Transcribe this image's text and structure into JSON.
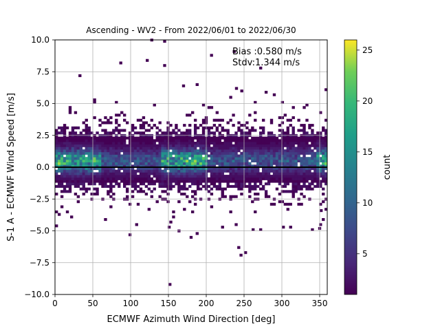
{
  "chart_data": {
    "type": "heatmap",
    "title": "Ascending - WV2 - From 2022/06/01 to 2022/06/30",
    "xlabel": "ECMWF Azimuth Wind Direction [deg]",
    "ylabel": "S-1 A - ECMWF Wind Speed [m/s]",
    "xlim": [
      0,
      360
    ],
    "ylim": [
      -10,
      10
    ],
    "xticks": [
      0,
      50,
      100,
      150,
      200,
      250,
      300,
      350
    ],
    "yticks": [
      -10.0,
      -7.5,
      -5.0,
      -2.5,
      0.0,
      2.5,
      5.0,
      7.5,
      10.0
    ],
    "ytick_labels": [
      "−10.0",
      "−7.5",
      "−5.0",
      "−2.5",
      "0.0",
      "2.5",
      "5.0",
      "7.5",
      "10.0"
    ],
    "grid": true,
    "colormap": "viridis",
    "colorbar": {
      "label": "count",
      "range": [
        1,
        26
      ],
      "ticks": [
        5,
        10,
        15,
        20,
        25
      ]
    },
    "annotations": [
      "Bias :0.580 m/s",
      "Stdv:1.344 m/s"
    ],
    "reference_line": {
      "y": 0,
      "color": "#000000"
    },
    "bin_width_x": 3.6,
    "bin_width_y": 0.2,
    "density_model": {
      "core_y_range": [
        -1.2,
        2.4
      ],
      "peak_count": 25,
      "high_count_x_regions": [
        [
          0,
          60
        ],
        [
          140,
          200
        ],
        [
          345,
          360
        ]
      ],
      "mean_y": 0.58,
      "stdv_y": 1.344
    },
    "outliers": [
      {
        "x": 126,
        "y": 9.9
      },
      {
        "x": 143,
        "y": 9.8
      },
      {
        "x": 85,
        "y": 8.1
      },
      {
        "x": 120,
        "y": 8.3
      },
      {
        "x": 143,
        "y": 7.9
      },
      {
        "x": 205,
        "y": 8.7
      },
      {
        "x": 235,
        "y": 9.0
      },
      {
        "x": 270,
        "y": 7.7
      },
      {
        "x": 238,
        "y": 6.1
      },
      {
        "x": 168,
        "y": 6.3
      },
      {
        "x": 186,
        "y": 6.4
      },
      {
        "x": 245,
        "y": 5.9
      },
      {
        "x": 150,
        "y": -9.3
      },
      {
        "x": 244,
        "y": -7.0
      },
      {
        "x": 250,
        "y": -6.8
      },
      {
        "x": 241,
        "y": -6.4
      },
      {
        "x": 0,
        "y": -4.7
      },
      {
        "x": 348,
        "y": -4.9
      },
      {
        "x": 162,
        "y": -5.1
      },
      {
        "x": 186,
        "y": -5.3
      },
      {
        "x": 178,
        "y": -5.6
      },
      {
        "x": 149,
        "y": -4.8
      },
      {
        "x": 106,
        "y": -4.6
      },
      {
        "x": 300,
        "y": -4.8
      },
      {
        "x": 20,
        "y": -4.0
      },
      {
        "x": 31,
        "y": 7.1
      },
      {
        "x": 260,
        "y": -5.0
      },
      {
        "x": 350,
        "y": -3.5
      }
    ]
  }
}
